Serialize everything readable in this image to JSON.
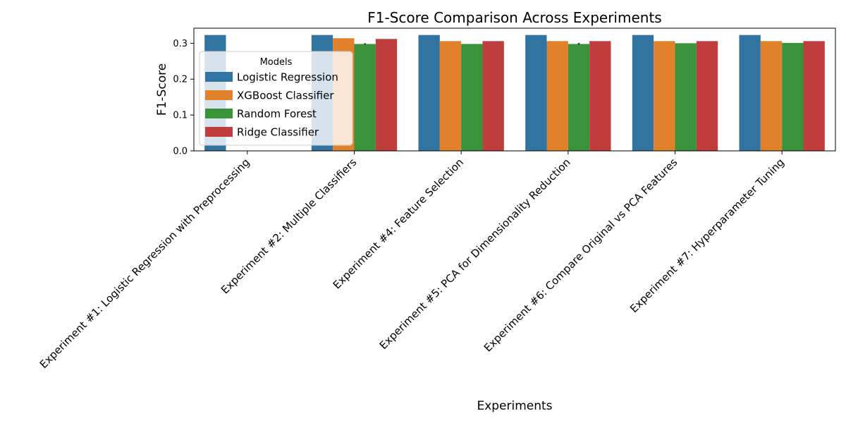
{
  "chart_data": {
    "type": "bar",
    "title": "F1-Score Comparison Across Experiments",
    "xlabel": "Experiments",
    "ylabel": "F1-Score",
    "ylim": [
      0,
      0.342
    ],
    "yticks": [
      0.0,
      0.1,
      0.2,
      0.3
    ],
    "ytick_labels": [
      "0.0",
      "0.1",
      "0.2",
      "0.3"
    ],
    "categories": [
      "Experiment #1: Logistic Regression with Preprocessing",
      "Experiment #2: Multiple Classifiers",
      "Experiment #4: Feature Selection",
      "Experiment #5: PCA for Dimensionality Reduction",
      "Experiment #6: Compare Original vs PCA Features",
      "Experiment #7: Hyperparameter Tuning"
    ],
    "legend": {
      "title": "Models",
      "placement": "upper-left"
    },
    "grid": false,
    "series": [
      {
        "name": "Logistic Regression",
        "color": "#3274a1",
        "values": [
          0.323,
          0.323,
          0.323,
          0.323,
          0.323,
          0.323
        ]
      },
      {
        "name": "XGBoost Classifier",
        "color": "#e1812c",
        "values": [
          null,
          0.314,
          0.306,
          0.306,
          0.306,
          0.306
        ]
      },
      {
        "name": "Random Forest",
        "color": "#3a923a",
        "values": [
          null,
          0.298,
          0.298,
          0.298,
          0.3,
          0.301
        ]
      },
      {
        "name": "Ridge Classifier",
        "color": "#c03d3e",
        "values": [
          null,
          0.312,
          0.306,
          0.306,
          0.306,
          0.306
        ]
      }
    ],
    "error_bars": [
      {
        "series": "Random Forest",
        "category_index": 1,
        "low": 0.296,
        "high": 0.3
      },
      {
        "series": "Random Forest",
        "category_index": 3,
        "low": 0.296,
        "high": 0.301
      }
    ]
  }
}
